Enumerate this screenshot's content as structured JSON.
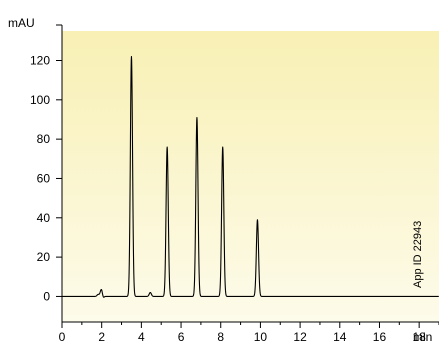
{
  "chart_data": {
    "type": "line",
    "xlabel": "min",
    "ylabel": "mAU",
    "annotation": "App ID 22943",
    "xlim": [
      0,
      19
    ],
    "ylim": [
      -13,
      135
    ],
    "x_ticks": [
      0,
      2,
      4,
      6,
      8,
      10,
      12,
      14,
      16,
      18
    ],
    "x_tick_labels": [
      "0",
      "2",
      "4",
      "6",
      "8",
      "10",
      "12",
      "14",
      "16",
      "18"
    ],
    "y_ticks": [
      0,
      20,
      40,
      60,
      80,
      100,
      120
    ],
    "y_tick_labels": [
      "0",
      "20",
      "40",
      "60",
      "80",
      "100",
      "120"
    ],
    "series": [
      {
        "peaks": [
          {
            "t": 1.82,
            "h": 1.0
          },
          {
            "t": 1.98,
            "h": 3.5
          },
          {
            "t": 3.5,
            "h": 122
          },
          {
            "t": 4.45,
            "h": 2.0
          },
          {
            "t": 5.3,
            "h": 76
          },
          {
            "t": 6.8,
            "h": 91
          },
          {
            "t": 8.1,
            "h": 76
          },
          {
            "t": 9.85,
            "h": 39
          }
        ]
      }
    ],
    "colors": {
      "background_top": "#f8f0b4",
      "background_bottom": "#fdfbea",
      "line": "#000000"
    }
  }
}
